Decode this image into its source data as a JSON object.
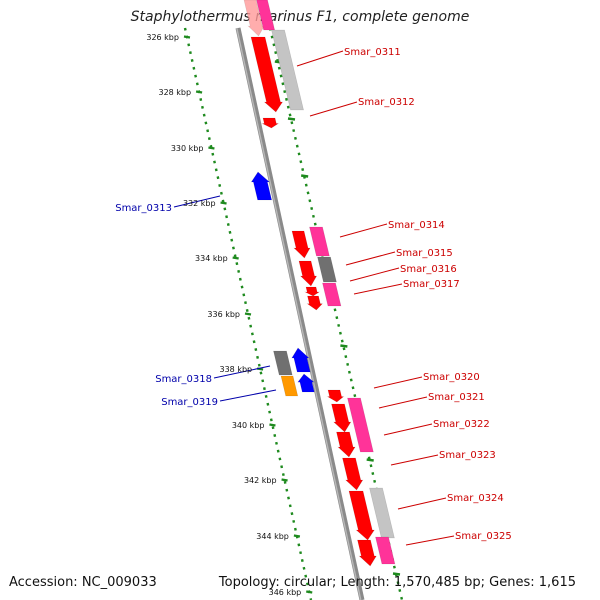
{
  "title": "Staphylothermus marinus F1, complete genome",
  "footer": {
    "accession": "Accession: NC_009033",
    "summary": "Topology: circular; Length: 1,570,485 bp; Genes: 1,615"
  },
  "colors": {
    "backbone": "#8a8a8a",
    "tick_track": "#1e8a1e",
    "cds": "#ff0000",
    "rna": "#ff3399",
    "pseudo": "#707070",
    "pseudo_light": "#c4c4c4",
    "reverse": "#0000ff",
    "other": "#ff9900",
    "fwd_label": "#cc0000",
    "rev_label": "#0000aa"
  },
  "kbp_labels": [
    "326 kbp",
    "328 kbp",
    "330 kbp",
    "332 kbp",
    "334 kbp",
    "336 kbp",
    "338 kbp",
    "340 kbp",
    "342 kbp",
    "344 kbp",
    "346 kbp"
  ],
  "gene_labels": [
    {
      "text": "Smar_0311",
      "strand": "forward"
    },
    {
      "text": "Smar_0312",
      "strand": "forward"
    },
    {
      "text": "Smar_0313",
      "strand": "reverse"
    },
    {
      "text": "Smar_0314",
      "strand": "forward"
    },
    {
      "text": "Smar_0315",
      "strand": "forward"
    },
    {
      "text": "Smar_0316",
      "strand": "forward"
    },
    {
      "text": "Smar_0317",
      "strand": "forward"
    },
    {
      "text": "Smar_0318",
      "strand": "reverse"
    },
    {
      "text": "Smar_0319",
      "strand": "reverse"
    },
    {
      "text": "Smar_0320",
      "strand": "forward"
    },
    {
      "text": "Smar_0321",
      "strand": "forward"
    },
    {
      "text": "Smar_0322",
      "strand": "forward"
    },
    {
      "text": "Smar_0323",
      "strand": "forward"
    },
    {
      "text": "Smar_0324",
      "strand": "forward"
    },
    {
      "text": "Smar_0325",
      "strand": "forward"
    }
  ]
}
